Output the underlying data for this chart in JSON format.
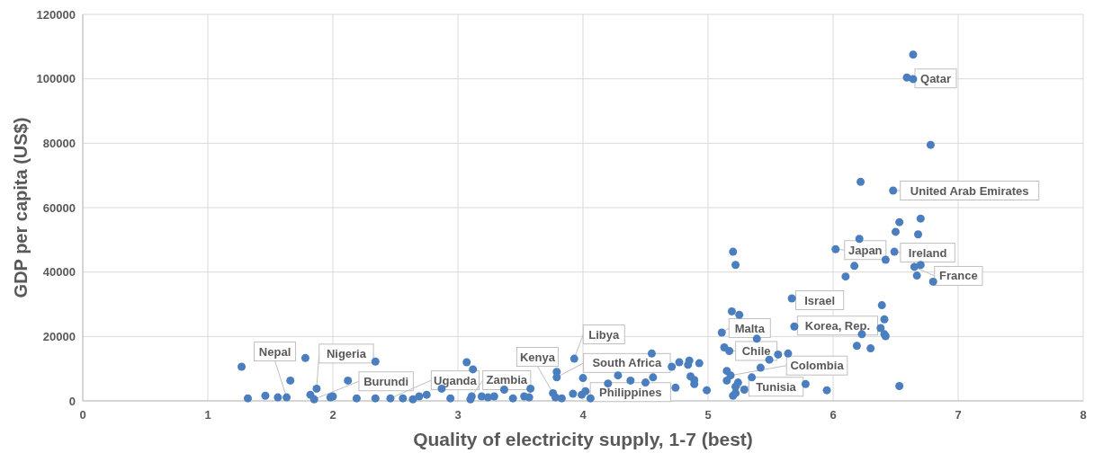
{
  "chart_data": {
    "type": "scatter",
    "xlabel": "Quality of electricity supply, 1-7 (best)",
    "ylabel": "GDP per capita (US$)",
    "xlim": [
      0,
      8
    ],
    "ylim": [
      0,
      120000
    ],
    "xticks": [
      0,
      1,
      2,
      3,
      4,
      5,
      6,
      7,
      8
    ],
    "yticks": [
      0,
      20000,
      40000,
      60000,
      80000,
      100000,
      120000
    ],
    "grid": true,
    "marker": "circle",
    "series": [
      {
        "color": "#4a7ebf",
        "x": [
          1.27,
          1.32,
          1.46,
          1.56,
          1.63,
          1.66,
          1.78,
          1.87,
          1.82,
          1.85,
          1.98,
          2.0,
          2.12,
          2.34,
          2.19,
          2.34,
          2.46,
          2.56,
          2.64,
          2.69,
          2.75,
          2.87,
          2.94,
          3.07,
          3.12,
          3.11,
          3.1,
          3.19,
          3.24,
          3.29,
          3.37,
          3.44,
          3.53,
          3.57,
          3.58,
          3.76,
          3.78,
          3.83,
          3.93,
          3.79,
          3.79,
          3.92,
          3.99,
          4.0,
          4.02,
          4.06,
          4.2,
          4.28,
          4.38,
          4.5,
          4.56,
          4.55,
          4.71,
          4.77,
          4.84,
          4.85,
          4.93,
          4.86,
          4.89,
          4.89,
          4.74,
          4.99,
          5.19,
          5.25,
          5.11,
          5.13,
          5.17,
          5.39,
          5.56,
          5.64,
          5.49,
          5.42,
          5.15,
          5.18,
          5.15,
          5.24,
          5.35,
          5.22,
          5.22,
          5.29,
          5.2,
          5.78,
          5.95,
          5.67,
          5.69,
          6.39,
          6.41,
          6.41,
          6.23,
          6.19,
          6.3,
          6.38,
          6.42,
          5.2,
          5.22,
          6.02,
          6.21,
          6.17,
          6.1,
          6.5,
          6.68,
          6.49,
          6.42,
          6.65,
          6.7,
          6.67,
          6.8,
          6.7,
          6.53,
          6.64,
          6.59,
          6.64,
          6.78,
          6.22,
          6.48,
          6.53
        ],
        "values": [
          10600,
          800,
          1600,
          1100,
          1100,
          6300,
          13300,
          3800,
          1900,
          500,
          1100,
          1400,
          6300,
          12200,
          800,
          800,
          800,
          800,
          500,
          1400,
          1900,
          3800,
          800,
          12000,
          9800,
          1400,
          500,
          1400,
          1100,
          1400,
          3500,
          800,
          1400,
          1100,
          3800,
          2400,
          1100,
          800,
          13100,
          9000,
          7300,
          2200,
          1900,
          7100,
          3000,
          800,
          5400,
          7900,
          6300,
          5700,
          7300,
          14700,
          10600,
          12000,
          11200,
          12500,
          11700,
          7600,
          6500,
          5200,
          4100,
          3300,
          27800,
          26700,
          21200,
          16600,
          15500,
          19300,
          14400,
          14700,
          12800,
          10300,
          9300,
          7900,
          6300,
          5700,
          7300,
          4400,
          2400,
          3500,
          1600,
          5200,
          3300,
          31800,
          23100,
          29700,
          25300,
          20700,
          20700,
          17100,
          16300,
          22600,
          20100,
          46300,
          42200,
          47100,
          50300,
          41900,
          38600,
          52500,
          51700,
          46300,
          43800,
          41600,
          42200,
          38900,
          37000,
          56600,
          55500,
          107500,
          100400,
          99900,
          79500,
          68000,
          65300,
          4600
        ]
      }
    ],
    "annotations": [
      {
        "text": "Nepal",
        "x": 1.63,
        "y": 1100
      },
      {
        "text": "Nigeria",
        "x": 1.87,
        "y": 3800
      },
      {
        "text": "Burundi",
        "x": 1.85,
        "y": 500
      },
      {
        "text": "Uganda",
        "x": 2.46,
        "y": 800
      },
      {
        "text": "Zambia",
        "x": 3.11,
        "y": 1400
      },
      {
        "text": "Kenya",
        "x": 3.78,
        "y": 1100
      },
      {
        "text": "Libya",
        "x": 3.93,
        "y": 13100
      },
      {
        "text": "South Africa",
        "x": 3.79,
        "y": 7300
      },
      {
        "text": "Philippines",
        "x": 4.02,
        "y": 3000
      },
      {
        "text": "Malta",
        "x": 5.11,
        "y": 21200
      },
      {
        "text": "Chile",
        "x": 5.17,
        "y": 15500
      },
      {
        "text": "Colombia",
        "x": 5.18,
        "y": 7900
      },
      {
        "text": "Tunisia",
        "x": 5.22,
        "y": 4400
      },
      {
        "text": "Israel",
        "x": 5.67,
        "y": 31800
      },
      {
        "text": "Korea, Rep.",
        "x": 5.69,
        "y": 23100
      },
      {
        "text": "Japan",
        "x": 6.02,
        "y": 47100
      },
      {
        "text": "Ireland",
        "x": 6.49,
        "y": 46300
      },
      {
        "text": "France",
        "x": 6.65,
        "y": 41600
      },
      {
        "text": "Qatar",
        "x": 6.59,
        "y": 100400
      },
      {
        "text": "United Arab Emirates",
        "x": 6.48,
        "y": 65300
      }
    ]
  }
}
